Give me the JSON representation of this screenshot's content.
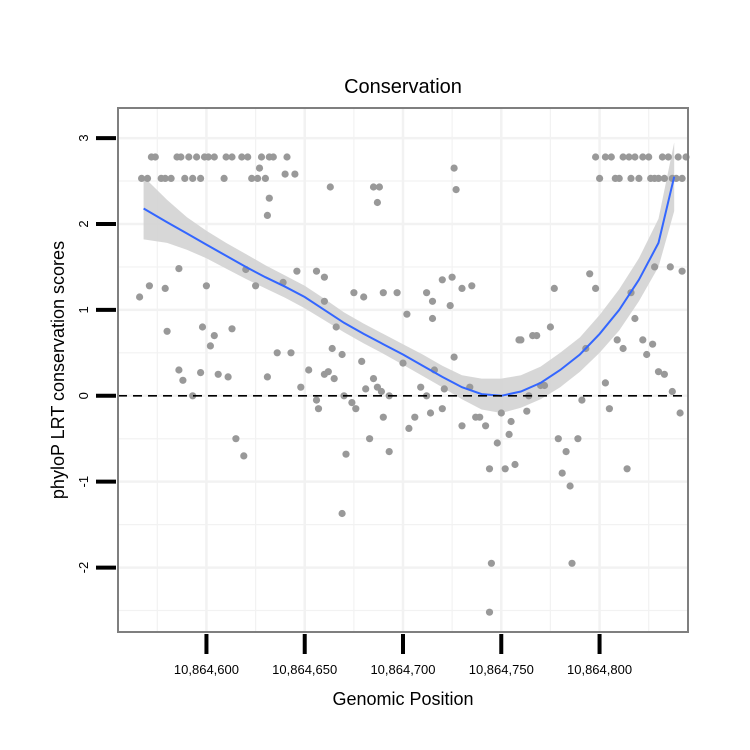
{
  "chart_data": {
    "type": "scatter",
    "title": "Conservation",
    "xlabel": "Genomic Position",
    "ylabel": "phyloP LRT conservation scores",
    "xlim": [
      10864555,
      10864845
    ],
    "ylim": [
      -2.75,
      3.35
    ],
    "xticks": [
      10864600,
      10864650,
      10864700,
      10864750,
      10864800
    ],
    "xtick_labels": [
      "10,864,600",
      "10,864,650",
      "10,864,700",
      "10,864,750",
      "10,864,800"
    ],
    "yticks": [
      -2,
      -1,
      0,
      1,
      2,
      3
    ],
    "ytick_labels": [
      "-2",
      "-1",
      "0",
      "1",
      "2",
      "3"
    ],
    "reference_line": {
      "y": 0,
      "style": "dashed"
    },
    "grid": true,
    "colors": {
      "points": "#999999",
      "smooth": "#3366ff",
      "ribbon": "#d3d3d3",
      "grid": "#f2f2f2",
      "frame": "#7f7f7f"
    },
    "points": [
      [
        10864567,
        2.53
      ],
      [
        10864570,
        2.53
      ],
      [
        10864572,
        2.78
      ],
      [
        10864574,
        2.78
      ],
      [
        10864577,
        2.53
      ],
      [
        10864579,
        2.53
      ],
      [
        10864582,
        2.53
      ],
      [
        10864585,
        2.78
      ],
      [
        10864587,
        2.78
      ],
      [
        10864589,
        2.53
      ],
      [
        10864591,
        2.78
      ],
      [
        10864593,
        2.53
      ],
      [
        10864595,
        2.78
      ],
      [
        10864597,
        2.53
      ],
      [
        10864599,
        2.78
      ],
      [
        10864601,
        2.78
      ],
      [
        10864604,
        2.78
      ],
      [
        10864609,
        2.53
      ],
      [
        10864610,
        2.78
      ],
      [
        10864613,
        2.78
      ],
      [
        10864618,
        2.78
      ],
      [
        10864621,
        2.78
      ],
      [
        10864623,
        2.53
      ],
      [
        10864626,
        2.53
      ],
      [
        10864628,
        2.78
      ],
      [
        10864630,
        2.53
      ],
      [
        10864632,
        2.78
      ],
      [
        10864634,
        2.78
      ],
      [
        10864640,
        2.58
      ],
      [
        10864641,
        2.78
      ],
      [
        10864645,
        2.58
      ],
      [
        10864627,
        2.65
      ],
      [
        10864632,
        2.3
      ],
      [
        10864631,
        2.1
      ],
      [
        10864663,
        2.43
      ],
      [
        10864685,
        2.43
      ],
      [
        10864688,
        2.43
      ],
      [
        10864687,
        2.25
      ],
      [
        10864726,
        2.65
      ],
      [
        10864727,
        2.4
      ],
      [
        10864566,
        1.15
      ],
      [
        10864571,
        1.28
      ],
      [
        10864579,
        1.25
      ],
      [
        10864586,
        1.48
      ],
      [
        10864600,
        1.28
      ],
      [
        10864598,
        0.8
      ],
      [
        10864604,
        0.7
      ],
      [
        10864602,
        0.58
      ],
      [
        10864613,
        0.78
      ],
      [
        10864620,
        1.47
      ],
      [
        10864625,
        1.28
      ],
      [
        10864639,
        1.32
      ],
      [
        10864646,
        1.45
      ],
      [
        10864656,
        1.45
      ],
      [
        10864660,
        1.38
      ],
      [
        10864660,
        1.1
      ],
      [
        10864675,
        1.2
      ],
      [
        10864680,
        1.15
      ],
      [
        10864690,
        1.2
      ],
      [
        10864697,
        1.2
      ],
      [
        10864702,
        0.95
      ],
      [
        10864712,
        1.2
      ],
      [
        10864715,
        1.1
      ],
      [
        10864720,
        1.35
      ],
      [
        10864725,
        1.38
      ],
      [
        10864730,
        1.25
      ],
      [
        10864735,
        1.28
      ],
      [
        10864724,
        1.05
      ],
      [
        10864715,
        0.9
      ],
      [
        10864580,
        0.75
      ],
      [
        10864586,
        0.3
      ],
      [
        10864588,
        0.18
      ],
      [
        10864593,
        0.0
      ],
      [
        10864597,
        0.27
      ],
      [
        10864606,
        0.25
      ],
      [
        10864611,
        0.22
      ],
      [
        10864615,
        -0.5
      ],
      [
        10864619,
        -0.7
      ],
      [
        10864631,
        0.22
      ],
      [
        10864636,
        0.5
      ],
      [
        10864643,
        0.5
      ],
      [
        10864648,
        0.1
      ],
      [
        10864652,
        0.3
      ],
      [
        10864656,
        -0.05
      ],
      [
        10864657,
        -0.15
      ],
      [
        10864660,
        0.25
      ],
      [
        10864662,
        0.28
      ],
      [
        10864665,
        0.2
      ],
      [
        10864666,
        0.8
      ],
      [
        10864664,
        0.55
      ],
      [
        10864669,
        0.48
      ],
      [
        10864670,
        0.0
      ],
      [
        10864671,
        -0.68
      ],
      [
        10864669,
        -1.37
      ],
      [
        10864674,
        -0.08
      ],
      [
        10864676,
        -0.15
      ],
      [
        10864679,
        0.4
      ],
      [
        10864681,
        0.08
      ],
      [
        10864683,
        -0.5
      ],
      [
        10864685,
        0.2
      ],
      [
        10864687,
        0.1
      ],
      [
        10864689,
        0.05
      ],
      [
        10864690,
        -0.25
      ],
      [
        10864693,
        0.0
      ],
      [
        10864693,
        -0.65
      ],
      [
        10864700,
        0.38
      ],
      [
        10864703,
        -0.38
      ],
      [
        10864706,
        -0.25
      ],
      [
        10864709,
        0.1
      ],
      [
        10864712,
        0.0
      ],
      [
        10864714,
        -0.2
      ],
      [
        10864716,
        0.3
      ],
      [
        10864720,
        -0.15
      ],
      [
        10864721,
        0.08
      ],
      [
        10864726,
        0.45
      ],
      [
        10864730,
        -0.35
      ],
      [
        10864734,
        0.1
      ],
      [
        10864737,
        -0.25
      ],
      [
        10864739,
        -0.25
      ],
      [
        10864742,
        -0.35
      ],
      [
        10864744,
        -0.85
      ],
      [
        10864745,
        -1.95
      ],
      [
        10864744,
        -2.52
      ],
      [
        10864748,
        -0.55
      ],
      [
        10864750,
        -0.2
      ],
      [
        10864752,
        -0.85
      ],
      [
        10864754,
        -0.45
      ],
      [
        10864755,
        -0.3
      ],
      [
        10864757,
        -0.8
      ],
      [
        10864759,
        0.65
      ],
      [
        10864760,
        0.65
      ],
      [
        10864763,
        -0.18
      ],
      [
        10864764,
        0.0
      ],
      [
        10864766,
        0.7
      ],
      [
        10864768,
        0.7
      ],
      [
        10864770,
        0.12
      ],
      [
        10864772,
        0.12
      ],
      [
        10864775,
        0.8
      ],
      [
        10864777,
        1.25
      ],
      [
        10864779,
        -0.5
      ],
      [
        10864781,
        -0.9
      ],
      [
        10864783,
        -0.65
      ],
      [
        10864785,
        -1.05
      ],
      [
        10864786,
        -1.95
      ],
      [
        10864789,
        -0.5
      ],
      [
        10864791,
        -0.05
      ],
      [
        10864793,
        0.55
      ],
      [
        10864795,
        1.42
      ],
      [
        10864798,
        1.25
      ],
      [
        10864803,
        0.15
      ],
      [
        10864805,
        -0.15
      ],
      [
        10864809,
        0.65
      ],
      [
        10864812,
        0.55
      ],
      [
        10864814,
        -0.85
      ],
      [
        10864816,
        1.2
      ],
      [
        10864818,
        0.9
      ],
      [
        10864822,
        0.65
      ],
      [
        10864824,
        0.48
      ],
      [
        10864827,
        0.6
      ],
      [
        10864828,
        1.5
      ],
      [
        10864830,
        0.28
      ],
      [
        10864833,
        0.25
      ],
      [
        10864836,
        1.5
      ],
      [
        10864837,
        0.05
      ],
      [
        10864842,
        1.45
      ],
      [
        10864841,
        -0.2
      ],
      [
        10864812,
        2.78
      ],
      [
        10864815,
        2.78
      ],
      [
        10864818,
        2.78
      ],
      [
        10864820,
        2.53
      ],
      [
        10864822,
        2.78
      ],
      [
        10864825,
        2.78
      ],
      [
        10864828,
        2.53
      ],
      [
        10864830,
        2.53
      ],
      [
        10864832,
        2.78
      ],
      [
        10864835,
        2.78
      ],
      [
        10864837,
        2.53
      ],
      [
        10864840,
        2.78
      ],
      [
        10864842,
        2.53
      ],
      [
        10864844,
        2.78
      ],
      [
        10864798,
        2.78
      ],
      [
        10864800,
        2.53
      ],
      [
        10864803,
        2.78
      ],
      [
        10864806,
        2.78
      ],
      [
        10864808,
        2.53
      ],
      [
        10864810,
        2.53
      ],
      [
        10864816,
        2.53
      ],
      [
        10864826,
        2.53
      ],
      [
        10864833,
        2.53
      ],
      [
        10864839,
        2.53
      ]
    ],
    "smooth": {
      "x": [
        10864568,
        10864580,
        10864590,
        10864600,
        10864610,
        10864620,
        10864630,
        10864640,
        10864650,
        10864660,
        10864670,
        10864680,
        10864690,
        10864700,
        10864710,
        10864720,
        10864730,
        10864740,
        10864750,
        10864760,
        10864770,
        10864780,
        10864790,
        10864800,
        10864810,
        10864820,
        10864830,
        10864838
      ],
      "y": [
        2.18,
        2.02,
        1.89,
        1.76,
        1.63,
        1.5,
        1.38,
        1.27,
        1.15,
        1.0,
        0.85,
        0.72,
        0.6,
        0.48,
        0.35,
        0.22,
        0.1,
        0.02,
        0.0,
        0.05,
        0.15,
        0.3,
        0.48,
        0.72,
        1.0,
        1.35,
        1.78,
        2.55
      ],
      "lower": [
        1.82,
        1.78,
        1.7,
        1.6,
        1.48,
        1.36,
        1.25,
        1.14,
        1.02,
        0.88,
        0.74,
        0.61,
        0.49,
        0.36,
        0.23,
        0.1,
        -0.04,
        -0.16,
        -0.2,
        -0.14,
        -0.04,
        0.1,
        0.28,
        0.5,
        0.76,
        1.1,
        1.5,
        2.15
      ],
      "upper": [
        2.55,
        2.28,
        2.08,
        1.92,
        1.78,
        1.65,
        1.52,
        1.4,
        1.28,
        1.13,
        0.97,
        0.84,
        0.72,
        0.6,
        0.48,
        0.35,
        0.24,
        0.2,
        0.2,
        0.24,
        0.34,
        0.5,
        0.68,
        0.94,
        1.24,
        1.6,
        2.06,
        2.95
      ]
    }
  }
}
